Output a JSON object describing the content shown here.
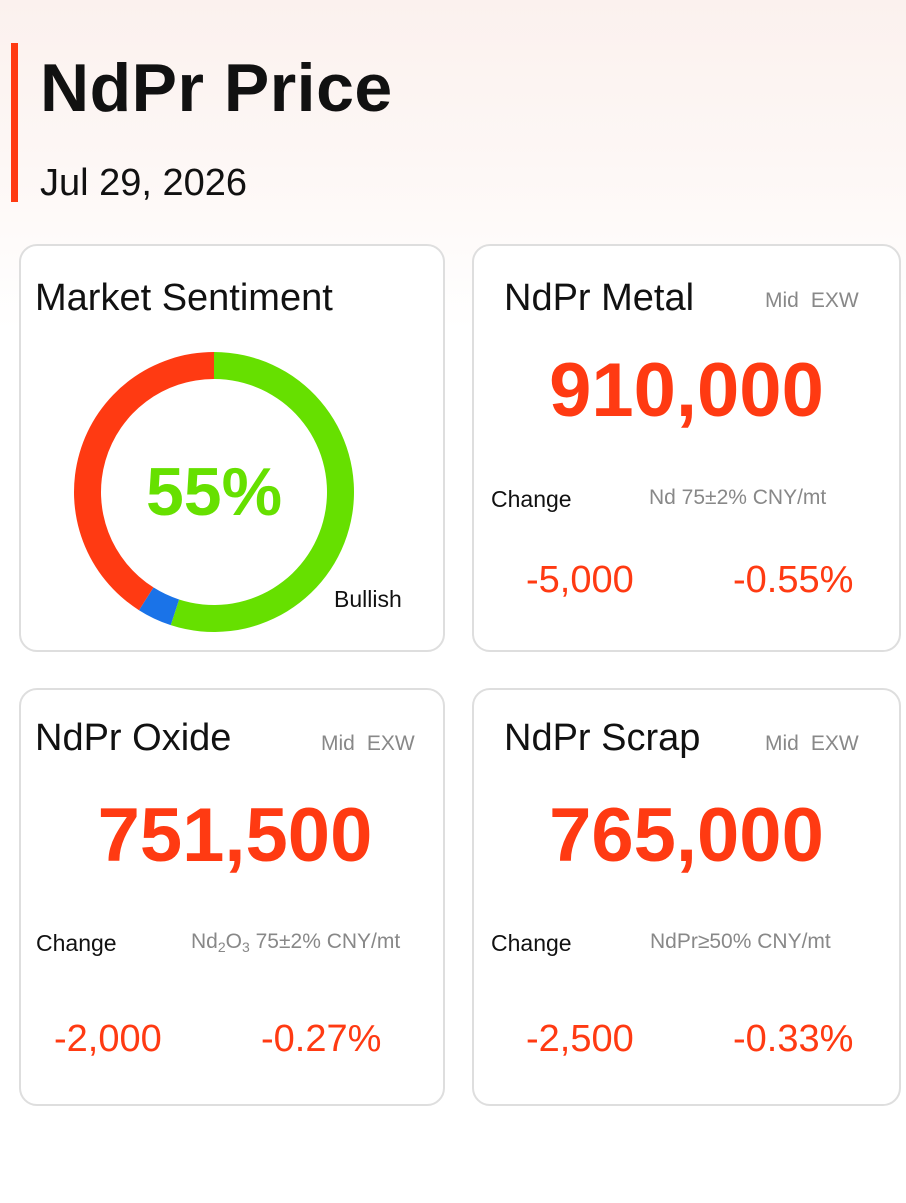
{
  "header": {
    "title": "NdPr Price",
    "date": "Jul 29, 2026"
  },
  "sentiment": {
    "title": "Market Sentiment",
    "percent_label": "55%",
    "label": "Bullish",
    "bullish": 55,
    "neutral": 4,
    "bearish": 41,
    "colors": {
      "bullish": "#66e000",
      "neutral": "#1a73e8",
      "bearish": "#ff3a12"
    }
  },
  "metal": {
    "title": "NdPr Metal",
    "tag_mid": "Mid",
    "tag_exw": "EXW",
    "price": "910,000",
    "change_label": "Change",
    "spec": "Nd 75±2% CNY/mt",
    "change_abs": "-5,000",
    "change_pct": "-0.55%"
  },
  "oxide": {
    "title": "NdPr Oxide",
    "tag_mid": "Mid",
    "tag_exw": "EXW",
    "price": "751,500",
    "change_label": "Change",
    "spec_prefix": "Nd",
    "spec_sub1": "2",
    "spec_mid": "O",
    "spec_sub2": "3",
    "spec_suffix": " 75±2% CNY/mt",
    "change_abs": "-2,000",
    "change_pct": "-0.27%"
  },
  "scrap": {
    "title": "NdPr Scrap",
    "tag_mid": "Mid",
    "tag_exw": "EXW",
    "price": "765,000",
    "change_label": "Change",
    "spec": "NdPr≥50% CNY/mt",
    "change_abs": "-2,500",
    "change_pct": "-0.33%"
  },
  "colors": {
    "accent": "#ff3a12",
    "tag": "#888888",
    "border": "#dedede"
  }
}
